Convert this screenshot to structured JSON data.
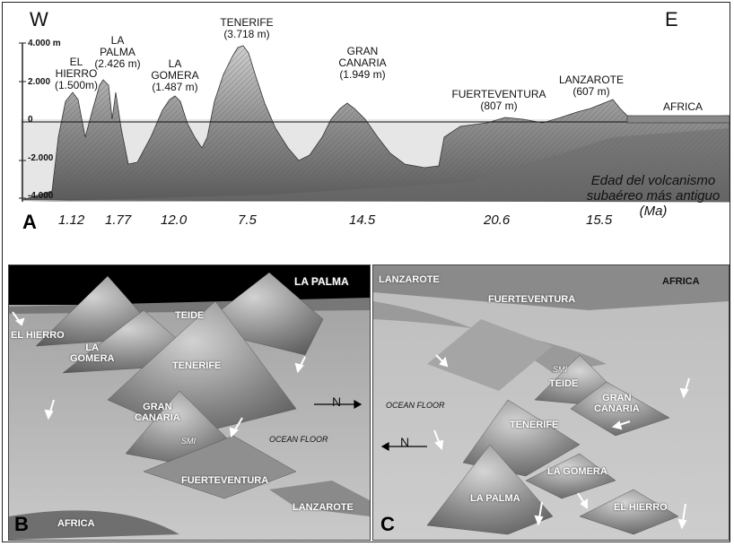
{
  "panel_a": {
    "west": "W",
    "east": "E",
    "letter": "A",
    "axis": [
      "4.000 m",
      "2.000",
      "0",
      "-2.000",
      "-4.000"
    ],
    "islands": [
      {
        "name": "EL\nHIERRO",
        "elev": "(1.500m)"
      },
      {
        "name": "LA\nPALMA",
        "elev": "(2.426 m)"
      },
      {
        "name": "LA\nGOMERA",
        "elev": "(1.487 m)"
      },
      {
        "name": "TENERIFE",
        "elev": "(3.718 m)"
      },
      {
        "name": "GRAN\nCANARIA",
        "elev": "(1.949 m)"
      },
      {
        "name": "FUERTEVENTURA",
        "elev": "(807 m)"
      },
      {
        "name": "LANZAROTE",
        "elev": "(607 m)"
      },
      {
        "name": "AFRICA",
        "elev": ""
      }
    ],
    "ages": [
      "1.12",
      "1.77",
      "12.0",
      "7.5",
      "14.5",
      "20.6",
      "15.5"
    ],
    "age_caption": [
      "Edad del volcanismo",
      "subaéreo más antiguo",
      "(Ma)"
    ]
  },
  "panel_b": {
    "letter": "B",
    "labels": {
      "la_palma": "LA PALMA",
      "teide": "TEIDE",
      "el_hierro": "EL HIERRO",
      "la_gomera": "LA\nGOMERA",
      "tenerife": "TENERIFE",
      "gran_canaria": "GRAN\nCANARIA",
      "smi": "SMI",
      "ocean_floor": "OCEAN FLOOR",
      "north": "N",
      "fuerteventura": "FUERTEVENTURA",
      "lanzarote": "LANZAROTE",
      "africa": "AFRICA"
    }
  },
  "panel_c": {
    "letter": "C",
    "labels": {
      "lanzarote": "LANZAROTE",
      "africa": "AFRICA",
      "fuerteventura": "FUERTEVENTURA",
      "smi": "SMI",
      "teide": "TEIDE",
      "gran_canaria": "GRAN\nCANARIA",
      "ocean_floor": "OCEAN FLOOR",
      "tenerife": "TENERIFE",
      "north": "N",
      "la_gomera": "LA GOMERA",
      "la_palma": "LA PALMA",
      "el_hierro": "EL HIERRO"
    }
  }
}
